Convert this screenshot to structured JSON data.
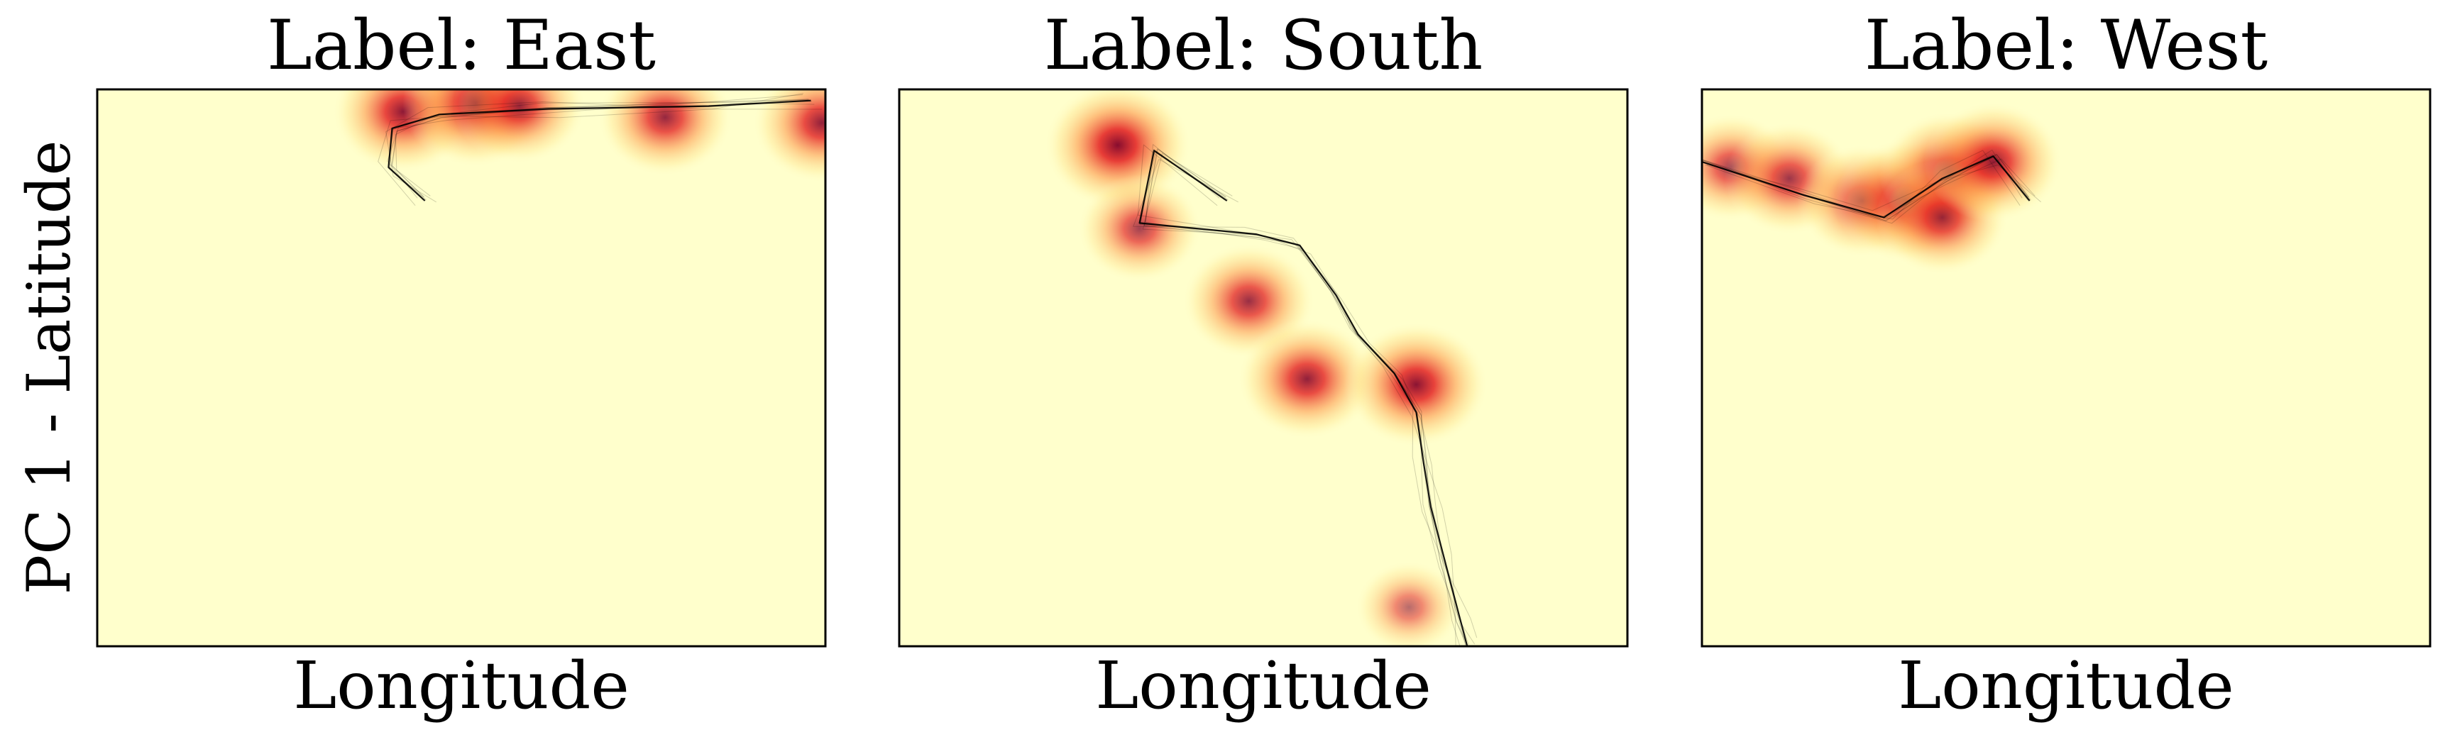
{
  "figure": {
    "ylabel": "PC 1 - Latitude",
    "colormap": [
      "#ffffcc",
      "#fed976",
      "#fd8d3c",
      "#e31a1c",
      "#800026"
    ],
    "line_color": "#000000"
  },
  "chart_data": [
    {
      "type": "heatmap",
      "title": "Label: East",
      "xlabel": "Longitude",
      "ylabel": "PC 1 - Latitude",
      "xlim": [
        0,
        1
      ],
      "ylim": [
        0,
        1
      ],
      "ticks": "none",
      "grid": false,
      "hotspots": [
        {
          "x": 0.42,
          "y": 0.96,
          "intensity": 0.9
        },
        {
          "x": 0.52,
          "y": 0.975,
          "intensity": 1.0
        },
        {
          "x": 0.58,
          "y": 0.97,
          "intensity": 0.75
        },
        {
          "x": 0.78,
          "y": 0.95,
          "intensity": 0.8
        },
        {
          "x": 0.995,
          "y": 0.94,
          "intensity": 0.85
        }
      ],
      "trajectory": [
        [
          0.45,
          0.8
        ],
        [
          0.4,
          0.86
        ],
        [
          0.405,
          0.93
        ],
        [
          0.47,
          0.955
        ],
        [
          0.62,
          0.965
        ],
        [
          0.84,
          0.97
        ],
        [
          0.98,
          0.98
        ]
      ]
    },
    {
      "type": "heatmap",
      "title": "Label: South",
      "xlabel": "Longitude",
      "ylabel": "",
      "xlim": [
        0,
        1
      ],
      "ylim": [
        0,
        1
      ],
      "ticks": "none",
      "grid": false,
      "hotspots": [
        {
          "x": 0.3,
          "y": 0.9,
          "intensity": 1.0
        },
        {
          "x": 0.33,
          "y": 0.75,
          "intensity": 0.6
        },
        {
          "x": 0.48,
          "y": 0.62,
          "intensity": 0.75
        },
        {
          "x": 0.56,
          "y": 0.48,
          "intensity": 0.85
        },
        {
          "x": 0.71,
          "y": 0.47,
          "intensity": 0.95
        },
        {
          "x": 0.7,
          "y": 0.07,
          "intensity": 0.3
        }
      ],
      "trajectory": [
        [
          0.45,
          0.8
        ],
        [
          0.35,
          0.89
        ],
        [
          0.33,
          0.76
        ],
        [
          0.49,
          0.74
        ],
        [
          0.55,
          0.72
        ],
        [
          0.6,
          0.63
        ],
        [
          0.63,
          0.56
        ],
        [
          0.68,
          0.49
        ],
        [
          0.71,
          0.42
        ],
        [
          0.72,
          0.33
        ],
        [
          0.73,
          0.25
        ],
        [
          0.75,
          0.15
        ],
        [
          0.77,
          0.05
        ],
        [
          0.78,
          0.0
        ]
      ]
    },
    {
      "type": "heatmap",
      "title": "Label: West",
      "xlabel": "Longitude",
      "ylabel": "",
      "xlim": [
        0,
        1
      ],
      "ylim": [
        0,
        1
      ],
      "ticks": "none",
      "grid": false,
      "hotspots": [
        {
          "x": 0.04,
          "y": 0.86,
          "intensity": 0.6
        },
        {
          "x": 0.12,
          "y": 0.84,
          "intensity": 0.7
        },
        {
          "x": 0.22,
          "y": 0.8,
          "intensity": 0.7
        },
        {
          "x": 0.28,
          "y": 0.8,
          "intensity": 0.9
        },
        {
          "x": 0.34,
          "y": 0.85,
          "intensity": 0.9
        },
        {
          "x": 0.33,
          "y": 0.77,
          "intensity": 0.75
        },
        {
          "x": 0.4,
          "y": 0.87,
          "intensity": 0.85
        }
      ],
      "trajectory": [
        [
          0.45,
          0.8
        ],
        [
          0.4,
          0.88
        ],
        [
          0.33,
          0.84
        ],
        [
          0.25,
          0.77
        ],
        [
          0.14,
          0.81
        ],
        [
          0.0,
          0.87
        ]
      ]
    }
  ]
}
